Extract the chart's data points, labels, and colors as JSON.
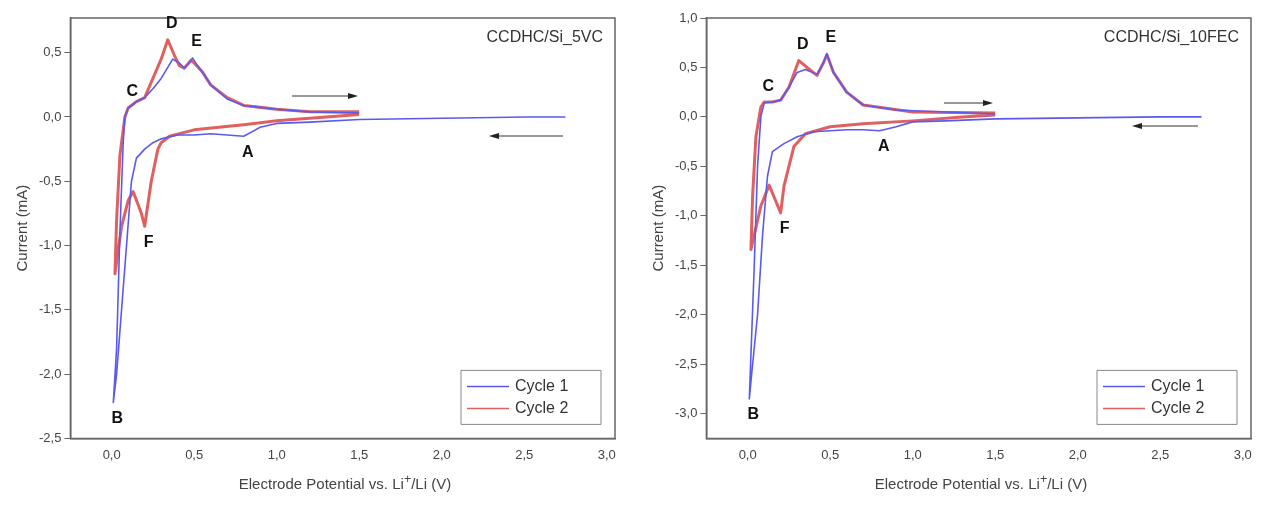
{
  "chart_data": [
    {
      "type": "line",
      "xlabel": "Electrode Potential vs. Li$^{+}$/Li (V)",
      "ylabel": "Current (mA)",
      "xlim": [
        -0.25,
        3.05
      ],
      "ylim": [
        -2.5,
        0.77
      ],
      "xticks": [
        {
          "value": 0,
          "label": "0,0"
        },
        {
          "value": 0.5,
          "label": "0,5"
        },
        {
          "value": 1,
          "label": "1,0"
        },
        {
          "value": 1.5,
          "label": "1,5"
        },
        {
          "value": 2,
          "label": "2,0"
        },
        {
          "value": 2.5,
          "label": "2,5"
        },
        {
          "value": 3,
          "label": "3,0"
        }
      ],
      "yticks": [
        {
          "value": 0.5,
          "label": "0,5"
        },
        {
          "value": 0,
          "label": "0,0"
        },
        {
          "value": -0.5,
          "label": "-0,5"
        },
        {
          "value": -1,
          "label": "-1,0"
        },
        {
          "value": -1.5,
          "label": "-1,5"
        },
        {
          "value": -2,
          "label": "-2,0"
        },
        {
          "value": -2.5,
          "label": "-2,5"
        }
      ],
      "grid": false,
      "legend": "bottom right",
      "marker": "none",
      "line_style": "solid",
      "series": [
        {
          "name": "Cycle 1",
          "color": "#5a5af0",
          "x": [
            2.75,
            2.5,
            2.0,
            1.5,
            1.2,
            1.0,
            0.9,
            0.8,
            0.7,
            0.6,
            0.5,
            0.4,
            0.3,
            0.25,
            0.2,
            0.15,
            0.12,
            0.09,
            0.06,
            0.03,
            0.01,
            0.03,
            0.05,
            0.07,
            0.08,
            0.1,
            0.15,
            0.2,
            0.25,
            0.3,
            0.37,
            0.41,
            0.44,
            0.47,
            0.49,
            0.52,
            0.55,
            0.6,
            0.7,
            0.8,
            1.0,
            1.2,
            1.5
          ],
          "values": [
            0.0,
            0.0,
            -0.01,
            -0.02,
            -0.04,
            -0.05,
            -0.08,
            -0.15,
            -0.14,
            -0.13,
            -0.14,
            -0.14,
            -0.17,
            -0.2,
            -0.25,
            -0.32,
            -0.5,
            -1.0,
            -1.5,
            -2.0,
            -2.22,
            -1.8,
            -0.9,
            -0.2,
            0.0,
            0.07,
            0.12,
            0.15,
            0.22,
            0.3,
            0.45,
            0.42,
            0.38,
            0.42,
            0.46,
            0.4,
            0.35,
            0.25,
            0.14,
            0.09,
            0.06,
            0.04,
            0.03
          ]
        },
        {
          "name": "Cycle 2",
          "color": "#e06060",
          "x": [
            1.5,
            1.3,
            1.0,
            0.8,
            0.5,
            0.35,
            0.3,
            0.28,
            0.24,
            0.2,
            0.18,
            0.16,
            0.13,
            0.1,
            0.06,
            0.02,
            0.03,
            0.05,
            0.08,
            0.1,
            0.15,
            0.2,
            0.25,
            0.3,
            0.34,
            0.38,
            0.41,
            0.44,
            0.48,
            0.5,
            0.55,
            0.6,
            0.7,
            0.8,
            1.0,
            1.2,
            1.5
          ],
          "values": [
            0.02,
            0.0,
            -0.03,
            -0.06,
            -0.1,
            -0.15,
            -0.2,
            -0.25,
            -0.5,
            -0.85,
            -0.75,
            -0.68,
            -0.58,
            -0.65,
            -0.85,
            -1.22,
            -0.8,
            -0.3,
            0.0,
            0.07,
            0.12,
            0.15,
            0.3,
            0.45,
            0.6,
            0.48,
            0.4,
            0.38,
            0.44,
            0.42,
            0.35,
            0.25,
            0.15,
            0.09,
            0.06,
            0.04,
            0.04
          ]
        }
      ],
      "annotations": [
        "CCDHC/Si_5VC",
        {
          "text": "A",
          "x": 0.8,
          "y": -0.15
        },
        {
          "text": "B",
          "x": 0.01,
          "y": -2.22
        },
        {
          "text": "C",
          "x": 0.1,
          "y": 0.07
        },
        {
          "text": "D",
          "x": 0.34,
          "y": 0.6
        },
        {
          "text": "E",
          "x": 0.49,
          "y": 0.46
        },
        {
          "text": "F",
          "x": 0.2,
          "y": -0.85
        }
      ]
    },
    {
      "type": "line",
      "xlabel": "Electrode Potential vs. Li$^{+}$/Li (V)",
      "ylabel": "Current (mA)",
      "xlim": [
        -0.25,
        3.05
      ],
      "ylim": [
        -3.25,
        1.0
      ],
      "xticks": [
        {
          "value": 0,
          "label": "0,0"
        },
        {
          "value": 0.5,
          "label": "0,5"
        },
        {
          "value": 1,
          "label": "1,0"
        },
        {
          "value": 1.5,
          "label": "1,5"
        },
        {
          "value": 2,
          "label": "2,0"
        },
        {
          "value": 2.5,
          "label": "2,5"
        },
        {
          "value": 3,
          "label": "3,0"
        }
      ],
      "yticks": [
        {
          "value": 1,
          "label": "1,0"
        },
        {
          "value": 0.5,
          "label": "0,5"
        },
        {
          "value": 0,
          "label": "0,0"
        },
        {
          "value": -0.5,
          "label": "-0,5"
        },
        {
          "value": -1,
          "label": "-1,0"
        },
        {
          "value": -1.5,
          "label": "-1,5"
        },
        {
          "value": -2,
          "label": "-2,0"
        },
        {
          "value": -2.5,
          "label": "-2,5"
        },
        {
          "value": -3,
          "label": "-3,0"
        }
      ],
      "grid": false,
      "legend": "bottom right",
      "marker": "none",
      "line_style": "solid",
      "series": [
        {
          "name": "Cycle 1",
          "color": "#5a5af0",
          "x": [
            2.75,
            2.5,
            2.0,
            1.5,
            1.2,
            1.0,
            0.9,
            0.8,
            0.7,
            0.6,
            0.5,
            0.4,
            0.3,
            0.22,
            0.15,
            0.12,
            0.09,
            0.06,
            0.03,
            0.01,
            0.04,
            0.06,
            0.08,
            0.1,
            0.15,
            0.2,
            0.25,
            0.3,
            0.35,
            0.42,
            0.46,
            0.48,
            0.52,
            0.6,
            0.7,
            0.9,
            1.2,
            1.5
          ],
          "values": [
            0.0,
            0.0,
            -0.01,
            -0.02,
            -0.04,
            -0.05,
            -0.1,
            -0.14,
            -0.13,
            -0.13,
            -0.14,
            -0.15,
            -0.2,
            -0.27,
            -0.35,
            -0.6,
            -1.2,
            -2.0,
            -2.5,
            -2.85,
            -1.5,
            -0.5,
            0.0,
            0.14,
            0.15,
            0.17,
            0.3,
            0.45,
            0.48,
            0.43,
            0.55,
            0.64,
            0.45,
            0.25,
            0.12,
            0.07,
            0.05,
            0.03
          ]
        },
        {
          "name": "Cycle 2",
          "color": "#e06060",
          "x": [
            1.5,
            1.3,
            1.0,
            0.7,
            0.5,
            0.35,
            0.28,
            0.22,
            0.2,
            0.17,
            0.13,
            0.08,
            0.02,
            0.03,
            0.05,
            0.08,
            0.1,
            0.15,
            0.2,
            0.25,
            0.31,
            0.36,
            0.42,
            0.46,
            0.48,
            0.52,
            0.6,
            0.7,
            1.0,
            1.5
          ],
          "values": [
            0.02,
            0.0,
            -0.04,
            -0.07,
            -0.1,
            -0.17,
            -0.3,
            -0.7,
            -0.97,
            -0.85,
            -0.69,
            -0.9,
            -1.34,
            -0.8,
            -0.2,
            0.1,
            0.15,
            0.15,
            0.17,
            0.3,
            0.57,
            0.5,
            0.42,
            0.55,
            0.63,
            0.45,
            0.25,
            0.12,
            0.05,
            0.04
          ]
        }
      ],
      "annotations": [
        "CCDHC/Si_10FEC",
        {
          "text": "A",
          "x": 0.8,
          "y": -0.14
        },
        {
          "text": "B",
          "x": 0.01,
          "y": -2.85
        },
        {
          "text": "C",
          "x": 0.1,
          "y": 0.14
        },
        {
          "text": "D",
          "x": 0.31,
          "y": 0.57
        },
        {
          "text": "E",
          "x": 0.48,
          "y": 0.64
        },
        {
          "text": "F",
          "x": 0.2,
          "y": -0.97
        }
      ]
    }
  ]
}
